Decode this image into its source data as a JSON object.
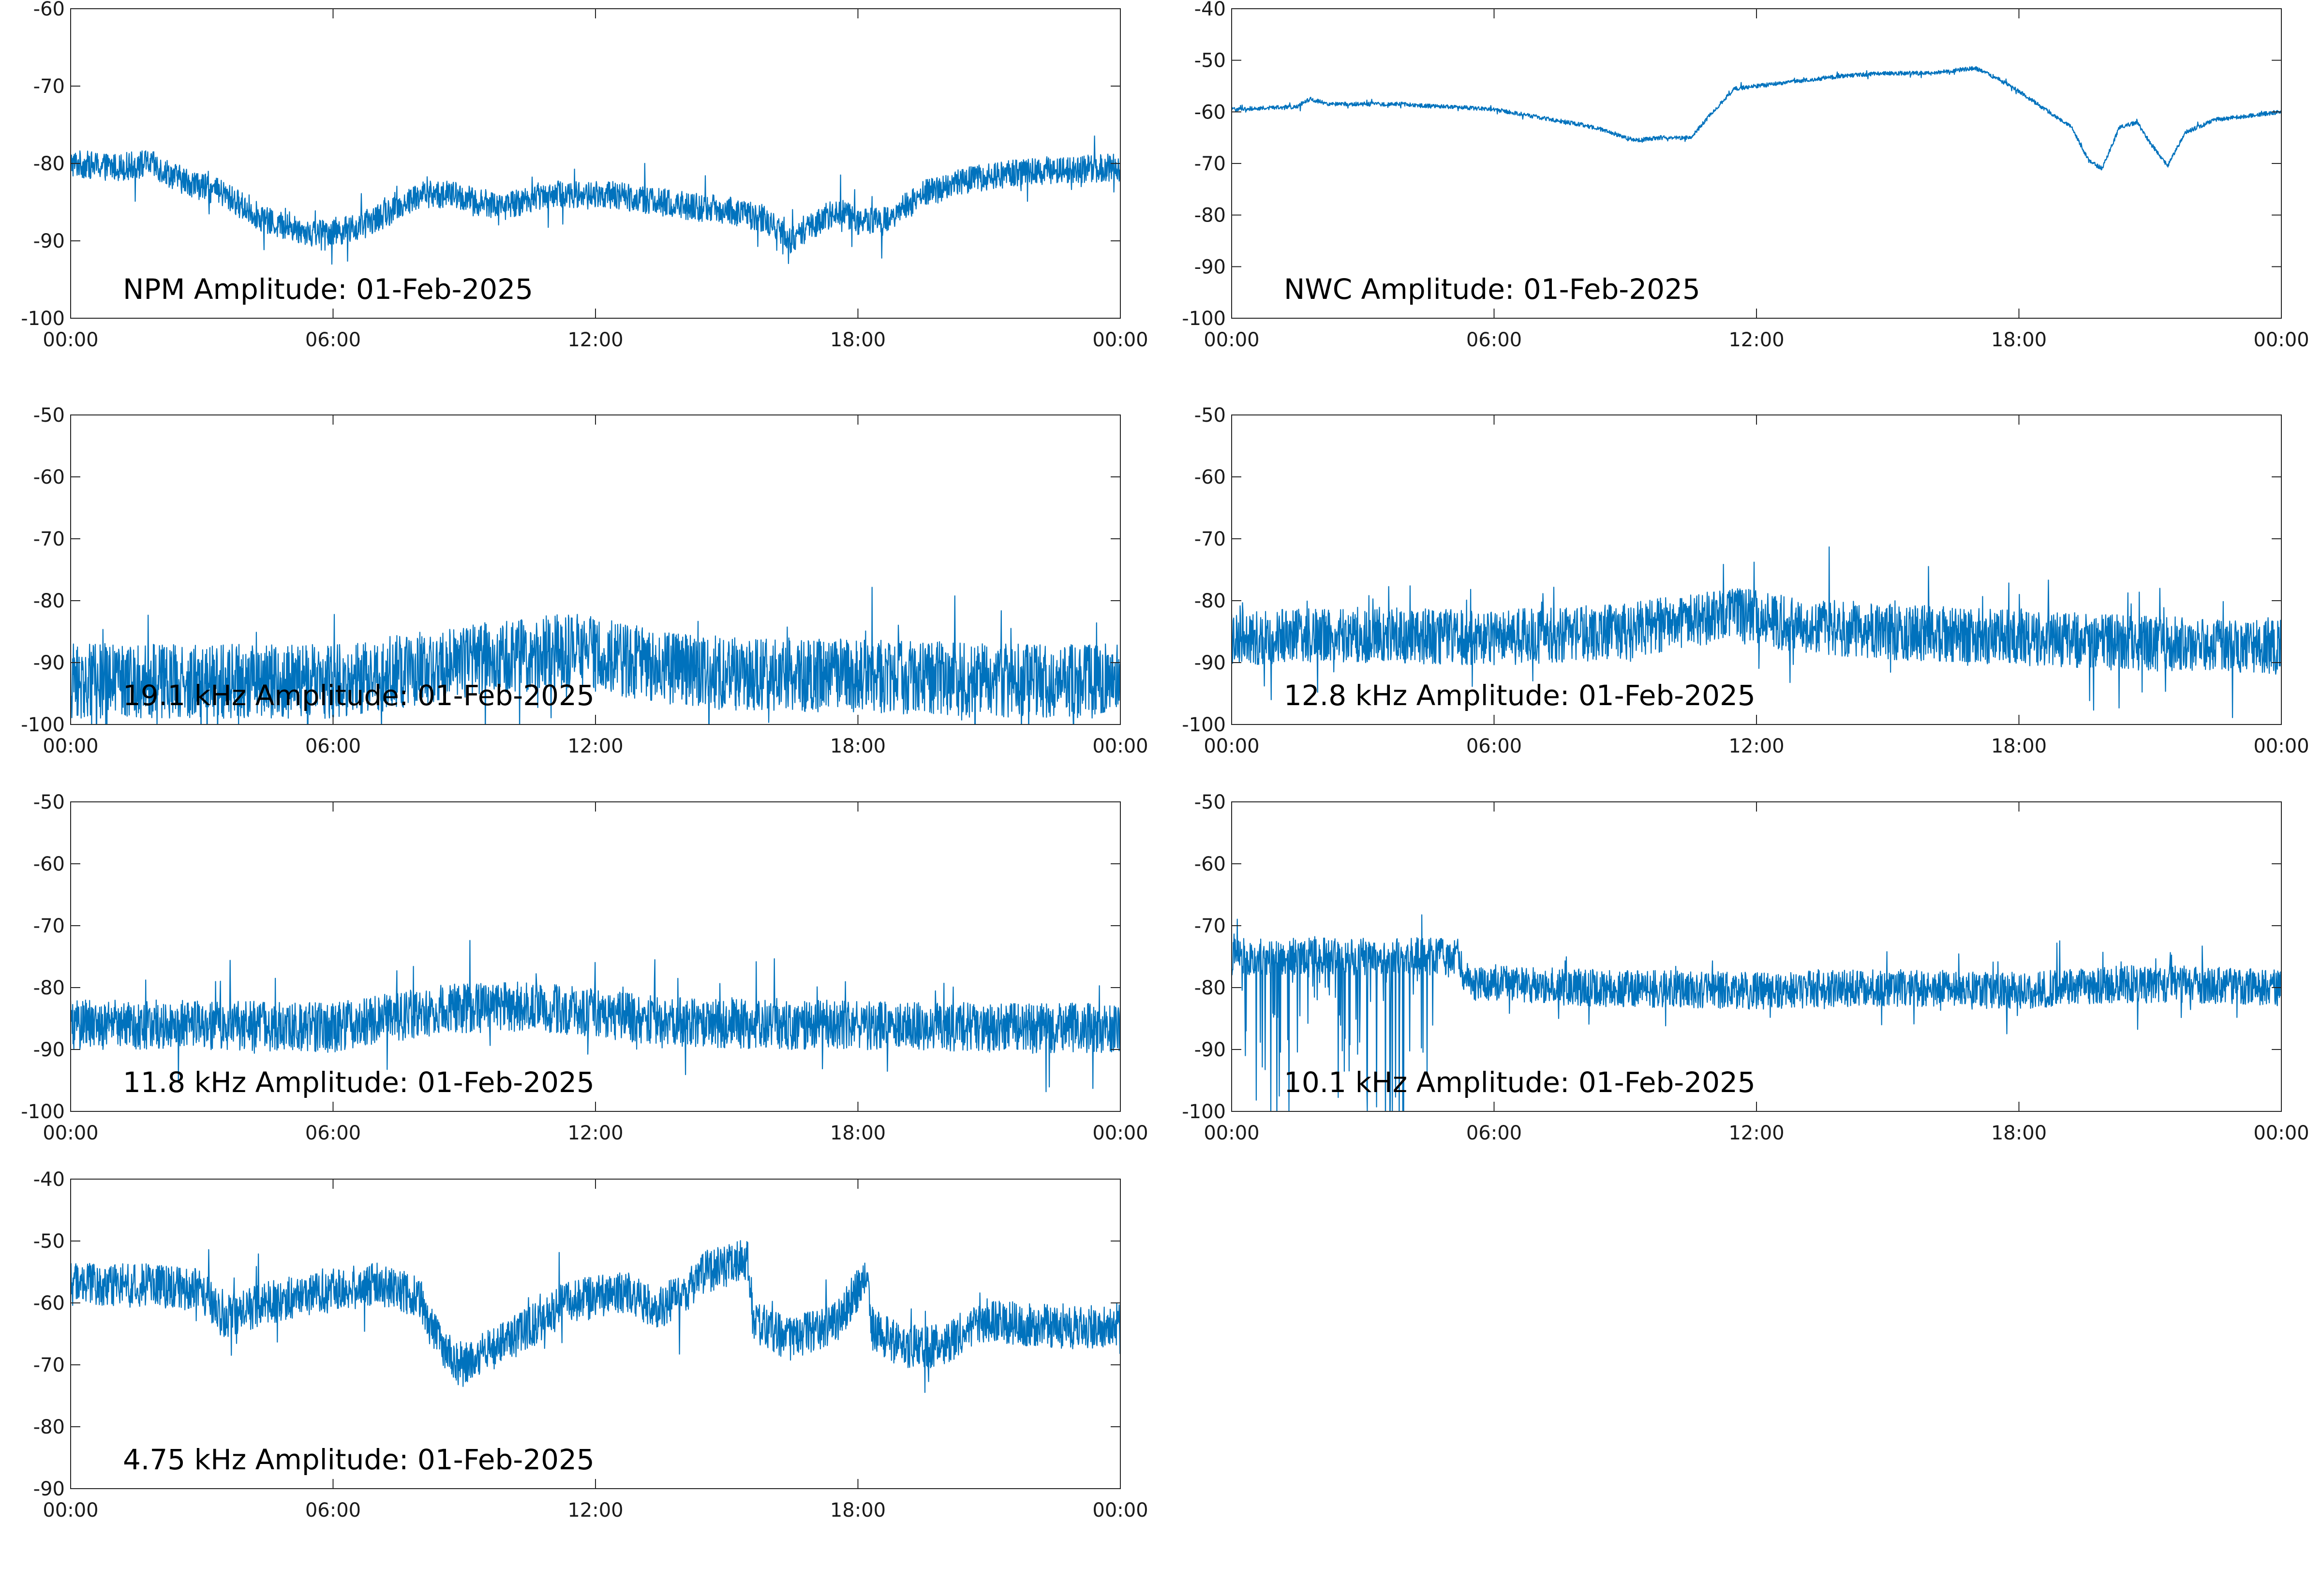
{
  "colors": {
    "series": "#0072BD",
    "axes": "#262626",
    "background": "#ffffff"
  },
  "x_tick_labels": [
    "00:00",
    "06:00",
    "12:00",
    "18:00",
    "00:00"
  ],
  "chart_data": [
    {
      "type": "line",
      "title": "NPM Amplitude: 01-Feb-2025",
      "xlabel": "",
      "ylabel": "",
      "x_range_hours": [
        0,
        24
      ],
      "ylim": [
        -100,
        -60
      ],
      "yticks": [
        -100,
        -90,
        -80,
        -70,
        -60
      ],
      "grid": false,
      "series": [
        {
          "x": [
            0,
            1,
            1.8,
            2.5,
            3.5,
            4.5,
            5.5,
            6.5,
            7.2,
            8,
            8.7,
            9.3,
            10,
            10.8,
            11.5,
            12.2,
            13,
            14,
            15,
            15.8,
            16.5,
            17,
            17.5,
            18,
            18.7,
            19.5,
            20.5,
            22,
            24
          ],
          "values": [
            -80,
            -80.5,
            -80,
            -82,
            -84,
            -87.5,
            -89,
            -88.5,
            -86.5,
            -84,
            -84,
            -85,
            -85.5,
            -84,
            -84,
            -84,
            -84.5,
            -85.5,
            -86,
            -87,
            -90,
            -88,
            -86,
            -87.5,
            -87,
            -84,
            -82,
            -81,
            -80.5
          ],
          "noise": 1.8
        }
      ]
    },
    {
      "type": "line",
      "title": "NWC Amplitude: 01-Feb-2025",
      "xlabel": "",
      "ylabel": "",
      "x_range_hours": [
        0,
        24
      ],
      "ylim": [
        -100,
        -40
      ],
      "yticks": [
        -100,
        -90,
        -80,
        -70,
        -60,
        -50,
        -40
      ],
      "grid": false,
      "series": [
        {
          "x": [
            0,
            1.5,
            1.8,
            2.2,
            3,
            4,
            4.3,
            5,
            6,
            7,
            8,
            8.5,
            9.2,
            9.8,
            10.5,
            11,
            11.5,
            12,
            13,
            14,
            15,
            16,
            17,
            17.5,
            18,
            18.5,
            19.2,
            19.6,
            19.9,
            20.3,
            20.7,
            21,
            21.4,
            21.8,
            22.5,
            24
          ],
          "values": [
            -59.5,
            -59,
            -57.5,
            -58.5,
            -58.5,
            -58.5,
            -58.8,
            -59,
            -59.5,
            -61,
            -62.5,
            -63.5,
            -65.5,
            -65,
            -65,
            -60,
            -55.5,
            -55,
            -54,
            -53,
            -52.5,
            -52.5,
            -51.5,
            -53.5,
            -56,
            -59,
            -63,
            -69.5,
            -71,
            -63,
            -62,
            -66,
            -70.5,
            -64,
            -61.5,
            -60
          ],
          "noise": 0.4
        }
      ]
    },
    {
      "type": "line",
      "title": "19.1 kHz Amplitude: 01-Feb-2025",
      "xlabel": "",
      "ylabel": "",
      "x_range_hours": [
        0,
        24
      ],
      "ylim": [
        -100,
        -50
      ],
      "yticks": [
        -100,
        -90,
        -80,
        -70,
        -60,
        -50
      ],
      "grid": false,
      "series": [
        {
          "x": [
            0,
            3,
            6,
            8,
            10,
            11.5,
            13,
            15,
            18,
            21,
            24
          ],
          "values": [
            -93,
            -93,
            -93,
            -91,
            -89,
            -88,
            -90,
            -92,
            -92,
            -93,
            -93
          ],
          "noise": 6
        }
      ]
    },
    {
      "type": "line",
      "title": "12.8 kHz Amplitude: 01-Feb-2025",
      "xlabel": "",
      "ylabel": "",
      "x_range_hours": [
        0,
        24
      ],
      "ylim": [
        -100,
        -50
      ],
      "yticks": [
        -100,
        -90,
        -80,
        -70,
        -60,
        -50
      ],
      "grid": false,
      "series": [
        {
          "x": [
            0,
            3,
            6,
            9,
            11.5,
            13,
            15,
            18,
            21,
            24
          ],
          "values": [
            -86,
            -85.5,
            -86,
            -85,
            -82,
            -84,
            -85,
            -86,
            -87,
            -87.5
          ],
          "noise": 4.5
        }
      ]
    },
    {
      "type": "line",
      "title": "11.8 kHz Amplitude: 01-Feb-2025",
      "xlabel": "",
      "ylabel": "",
      "x_range_hours": [
        0,
        24
      ],
      "ylim": [
        -100,
        -50
      ],
      "yticks": [
        -100,
        -90,
        -80,
        -70,
        -60,
        -50
      ],
      "grid": false,
      "series": [
        {
          "x": [
            0,
            3,
            6,
            8.5,
            10.5,
            12,
            13.5,
            16,
            18,
            21,
            24
          ],
          "values": [
            -86,
            -86,
            -86.5,
            -83.5,
            -83,
            -84,
            -85.5,
            -86,
            -86,
            -86.5,
            -86.5
          ],
          "noise": 4
        }
      ]
    },
    {
      "type": "line",
      "title": "10.1 kHz Amplitude: 01-Feb-2025",
      "xlabel": "",
      "ylabel": "",
      "x_range_hours": [
        0,
        24
      ],
      "ylim": [
        -100,
        -50
      ],
      "yticks": [
        -100,
        -90,
        -80,
        -70,
        -60,
        -50
      ],
      "grid": false,
      "series": [
        {
          "x": [
            0,
            2,
            5.2,
            5.3,
            8,
            12,
            15,
            18,
            20,
            22,
            24
          ],
          "values": [
            -75,
            -75,
            -75,
            -79,
            -80,
            -80.5,
            -80,
            -80.5,
            -79.5,
            -79.5,
            -80
          ],
          "noise": 3
        }
      ]
    },
    {
      "type": "line",
      "title": "4.75 kHz Amplitude: 01-Feb-2025",
      "xlabel": "",
      "ylabel": "",
      "x_range_hours": [
        0,
        24
      ],
      "ylim": [
        -90,
        -40
      ],
      "yticks": [
        -90,
        -80,
        -70,
        -60,
        -50,
        -40
      ],
      "grid": false,
      "series": [
        {
          "x": [
            0,
            1.5,
            3,
            3.4,
            3.6,
            4.5,
            6,
            7,
            8,
            8.3,
            8.8,
            9.5,
            10.5,
            11.3,
            12,
            12.7,
            13.3,
            14,
            14.5,
            15.5,
            15.6,
            16.5,
            17.5,
            18.2,
            18.3,
            19,
            20,
            20.5,
            21,
            22,
            23,
            24
          ],
          "values": [
            -57,
            -57,
            -58,
            -62,
            -62,
            -60,
            -58,
            -57,
            -59,
            -65,
            -70,
            -68,
            -64,
            -60,
            -59,
            -58,
            -61,
            -59,
            -55,
            -53,
            -63,
            -66,
            -63,
            -56,
            -64,
            -67,
            -67,
            -64,
            -63,
            -63.5,
            -64,
            -63.5
          ],
          "noise": 3.5
        }
      ]
    }
  ]
}
